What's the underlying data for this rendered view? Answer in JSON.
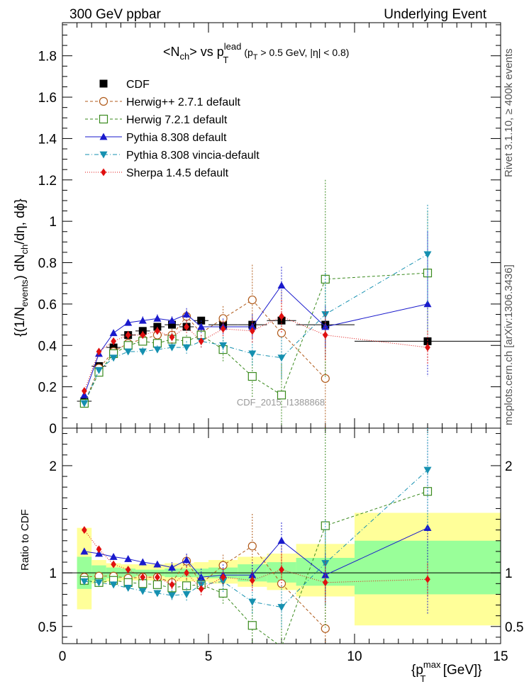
{
  "header": {
    "left": "300 GeV ppbar",
    "right": "Underlying Event"
  },
  "side_labels": {
    "top": "Rivet 3.1.10, ≥ 400k events",
    "bottom": "mcplots.cern.ch [arXiv:1306.3436]"
  },
  "watermark": "CDF_2015_I1388868",
  "ylabel_ratio": "Ratio to CDF",
  "chart_data": [
    {
      "type": "scatter",
      "title_parts": {
        "main": "<N",
        "main_sub": "ch",
        "main_mid": "> vs p",
        "main_sup": "lead",
        "main_sub2": "T",
        "cut_a": "(p",
        "cut_a_sub": "T",
        "cut_b": " > 0.5 GeV, |η| < 0.8)"
      },
      "ylabel_parts": {
        "a": "{(1/N",
        "a_sub": "events",
        "b": ") dN",
        "b_sub": "ch",
        "c": "/dη, dϕ}"
      },
      "xlabel_parts": {
        "a": "{p",
        "a_sup": "max",
        "a_sub": "T",
        "b": " [GeV]}"
      },
      "xlim": [
        0,
        15
      ],
      "ylim": [
        0,
        1.96
      ],
      "yticks": [
        "0",
        "0.2",
        "0.4",
        "0.6",
        "0.8",
        "1",
        "1.2",
        "1.4",
        "1.6",
        "1.8"
      ],
      "xticks": [
        "0",
        "5",
        "10",
        "15"
      ],
      "legend_position": "top-left",
      "series": [
        {
          "name": "CDF",
          "color": "#000000",
          "marker": "square-filled",
          "x": [
            0.75,
            1.25,
            1.75,
            2.25,
            2.75,
            3.25,
            3.75,
            4.25,
            4.75,
            5.5,
            6.5,
            7.5,
            9.0,
            12.5
          ],
          "y": [
            0.13,
            0.3,
            0.39,
            0.45,
            0.47,
            0.49,
            0.5,
            0.49,
            0.52,
            0.5,
            0.5,
            0.52,
            0.5,
            0.42
          ],
          "xerr": [
            0.25,
            0.25,
            0.25,
            0.25,
            0.25,
            0.25,
            0.25,
            0.25,
            0.25,
            0.5,
            0.5,
            0.5,
            1.0,
            2.5
          ],
          "yerr": [
            0.01,
            0.01,
            0.01,
            0.01,
            0.01,
            0.01,
            0.01,
            0.01,
            0.01,
            0.02,
            0.02,
            0.02,
            0.02,
            0.02
          ]
        },
        {
          "name": "Herwig++ 2.7.1 default",
          "color": "#b05a1a",
          "marker": "circle-open",
          "dash": "4,3",
          "x": [
            0.75,
            1.25,
            1.75,
            2.25,
            2.75,
            3.25,
            3.75,
            4.25,
            4.75,
            5.5,
            6.5,
            7.5,
            9.0
          ],
          "y": [
            0.12,
            0.29,
            0.37,
            0.41,
            0.43,
            0.45,
            0.45,
            0.54,
            0.46,
            0.53,
            0.62,
            0.46,
            0.24
          ],
          "yerr": [
            0.01,
            0.01,
            0.01,
            0.02,
            0.02,
            0.02,
            0.03,
            0.03,
            0.04,
            0.06,
            0.17,
            0.2,
            0.3
          ]
        },
        {
          "name": "Herwig 7.2.1 default",
          "color": "#3a8a1e",
          "marker": "square-open",
          "dash": "4,3",
          "x": [
            0.75,
            1.25,
            1.75,
            2.25,
            2.75,
            3.25,
            3.75,
            4.25,
            4.75,
            5.5,
            6.5,
            7.5,
            9.0,
            12.5
          ],
          "y": [
            0.12,
            0.27,
            0.36,
            0.4,
            0.42,
            0.41,
            0.43,
            0.42,
            0.45,
            0.38,
            0.25,
            0.16,
            0.72,
            0.75
          ],
          "yerr": [
            0.01,
            0.01,
            0.01,
            0.02,
            0.02,
            0.02,
            0.03,
            0.03,
            0.04,
            0.06,
            0.1,
            0.15,
            0.48,
            0.3
          ]
        },
        {
          "name": "Pythia 8.308 default",
          "color": "#1a1acc",
          "marker": "triangle-up-filled",
          "dash": "",
          "x": [
            0.75,
            1.25,
            1.75,
            2.25,
            2.75,
            3.25,
            3.75,
            4.25,
            4.75,
            5.5,
            6.5,
            7.5,
            9.0,
            12.5
          ],
          "y": [
            0.16,
            0.36,
            0.46,
            0.51,
            0.52,
            0.53,
            0.52,
            0.55,
            0.49,
            0.49,
            0.49,
            0.69,
            0.49,
            0.6
          ],
          "yerr": [
            0.01,
            0.01,
            0.01,
            0.01,
            0.02,
            0.02,
            0.02,
            0.03,
            0.03,
            0.04,
            0.06,
            0.09,
            0.1,
            0.35
          ]
        },
        {
          "name": "Pythia 8.308 vincia-default",
          "color": "#1590b0",
          "marker": "triangle-down-filled",
          "dash": "6,3,1,3",
          "x": [
            0.75,
            1.25,
            1.75,
            2.25,
            2.75,
            3.25,
            3.75,
            4.25,
            4.75,
            5.5,
            6.5,
            7.5,
            9.0,
            12.5
          ],
          "y": [
            0.12,
            0.28,
            0.34,
            0.37,
            0.37,
            0.38,
            0.39,
            0.39,
            0.42,
            0.4,
            0.36,
            0.34,
            0.55,
            0.84
          ],
          "yerr": [
            0.01,
            0.01,
            0.01,
            0.01,
            0.02,
            0.02,
            0.02,
            0.03,
            0.03,
            0.04,
            0.06,
            0.1,
            0.2,
            0.24
          ]
        },
        {
          "name": "Sherpa 1.4.5 default",
          "color": "#e01010",
          "marker": "diamond-filled",
          "dash": "1,2",
          "x": [
            0.75,
            1.25,
            1.75,
            2.25,
            2.75,
            3.25,
            3.75,
            4.25,
            4.75,
            5.5,
            6.5,
            7.5,
            9.0,
            12.5
          ],
          "y": [
            0.18,
            0.37,
            0.42,
            0.45,
            0.45,
            0.47,
            0.44,
            0.49,
            0.42,
            0.48,
            0.47,
            0.54,
            0.45,
            0.39
          ],
          "yerr": [
            0.01,
            0.01,
            0.01,
            0.02,
            0.02,
            0.02,
            0.03,
            0.03,
            0.03,
            0.04,
            0.06,
            0.08,
            0.12,
            0.08
          ]
        }
      ]
    },
    {
      "type": "scatter",
      "title": "",
      "ylabel": "Ratio to CDF",
      "xlim": [
        0,
        15
      ],
      "ylim": [
        0.34,
        2.35
      ],
      "yticks": [
        "0.5",
        "1",
        "2"
      ],
      "xticks": [
        "0",
        "5",
        "10",
        "15"
      ],
      "bands": {
        "x_edges": [
          0.5,
          1.0,
          1.5,
          2.0,
          2.5,
          3.0,
          3.5,
          4.0,
          4.5,
          5.0,
          6.0,
          7.0,
          8.0,
          10.0,
          15.0
        ],
        "stat_lo": [
          0.85,
          0.93,
          0.95,
          0.96,
          0.97,
          0.97,
          0.96,
          0.96,
          0.96,
          0.95,
          0.92,
          0.91,
          0.88,
          0.8
        ],
        "stat_hi": [
          1.15,
          1.07,
          1.05,
          1.04,
          1.03,
          1.03,
          1.04,
          1.04,
          1.04,
          1.05,
          1.08,
          1.1,
          1.14,
          1.3
        ],
        "total_lo": [
          0.66,
          0.9,
          0.92,
          0.93,
          0.93,
          0.93,
          0.92,
          0.92,
          0.92,
          0.9,
          0.87,
          0.84,
          0.78,
          0.51
        ],
        "total_hi": [
          1.42,
          1.12,
          1.09,
          1.08,
          1.08,
          1.08,
          1.09,
          1.09,
          1.1,
          1.12,
          1.15,
          1.18,
          1.27,
          1.56
        ],
        "stat_color": "#99ff99",
        "total_color": "#ffff99"
      },
      "series": [
        {
          "name": "Herwig++ 2.7.1 default",
          "color": "#b05a1a",
          "x": [
            0.75,
            1.25,
            1.75,
            2.25,
            2.75,
            3.25,
            3.75,
            4.25,
            4.75,
            5.5,
            6.5,
            7.5,
            9.0
          ],
          "y": [
            0.96,
            0.97,
            0.97,
            0.95,
            0.96,
            0.96,
            0.91,
            1.11,
            0.9,
            1.07,
            1.25,
            0.9,
            0.48
          ],
          "yerr": [
            0.03,
            0.03,
            0.03,
            0.03,
            0.03,
            0.03,
            0.05,
            0.06,
            0.08,
            0.1,
            0.3,
            0.35,
            0.6
          ]
        },
        {
          "name": "Herwig 7.2.1 default",
          "color": "#3a8a1e",
          "x": [
            0.75,
            1.25,
            1.75,
            2.25,
            2.75,
            3.25,
            3.75,
            4.25,
            4.75,
            5.5,
            6.5,
            7.5,
            9.0,
            12.5
          ],
          "y": [
            0.93,
            0.91,
            0.93,
            0.91,
            0.9,
            0.89,
            0.86,
            0.88,
            0.89,
            0.81,
            0.51,
            0.31,
            1.44,
            1.76
          ],
          "yerr": [
            0.03,
            0.03,
            0.03,
            0.03,
            0.03,
            0.03,
            0.05,
            0.06,
            0.08,
            0.1,
            0.2,
            0.3,
            0.95,
            0.7
          ]
        },
        {
          "name": "Pythia 8.308 default",
          "color": "#1a1acc",
          "x": [
            0.75,
            1.25,
            1.75,
            2.25,
            2.75,
            3.25,
            3.75,
            4.25,
            4.75,
            5.5,
            6.5,
            7.5,
            9.0,
            12.5
          ],
          "y": [
            1.2,
            1.18,
            1.15,
            1.13,
            1.1,
            1.08,
            1.05,
            1.12,
            0.96,
            0.98,
            0.98,
            1.3,
            0.98,
            1.42
          ],
          "yerr": [
            0.03,
            0.03,
            0.03,
            0.03,
            0.03,
            0.03,
            0.05,
            0.06,
            0.08,
            0.1,
            0.12,
            0.17,
            0.2,
            0.8
          ]
        },
        {
          "name": "Pythia 8.308 vincia-default",
          "color": "#1590b0",
          "x": [
            0.75,
            1.25,
            1.75,
            2.25,
            2.75,
            3.25,
            3.75,
            4.25,
            4.75,
            5.5,
            6.5,
            7.5,
            9.0,
            12.5
          ],
          "y": [
            0.92,
            0.91,
            0.89,
            0.86,
            0.83,
            0.81,
            0.79,
            0.8,
            0.89,
            0.92,
            0.73,
            0.68,
            1.09,
            1.96
          ],
          "yerr": [
            0.03,
            0.03,
            0.03,
            0.03,
            0.03,
            0.03,
            0.05,
            0.06,
            0.08,
            0.1,
            0.12,
            0.2,
            0.4,
            0.55
          ]
        },
        {
          "name": "Sherpa 1.4.5 default",
          "color": "#e01010",
          "x": [
            0.75,
            1.25,
            1.75,
            2.25,
            2.75,
            3.25,
            3.75,
            4.25,
            4.75,
            5.5,
            6.5,
            7.5,
            9.0,
            12.5
          ],
          "y": [
            1.4,
            1.22,
            1.08,
            1.03,
            0.96,
            0.96,
            0.89,
            1.0,
            0.85,
            0.96,
            0.93,
            1.03,
            0.91,
            0.94
          ],
          "yerr": [
            0.03,
            0.03,
            0.03,
            0.03,
            0.03,
            0.03,
            0.05,
            0.06,
            0.06,
            0.08,
            0.1,
            0.15,
            0.2,
            0.15
          ]
        }
      ]
    }
  ]
}
